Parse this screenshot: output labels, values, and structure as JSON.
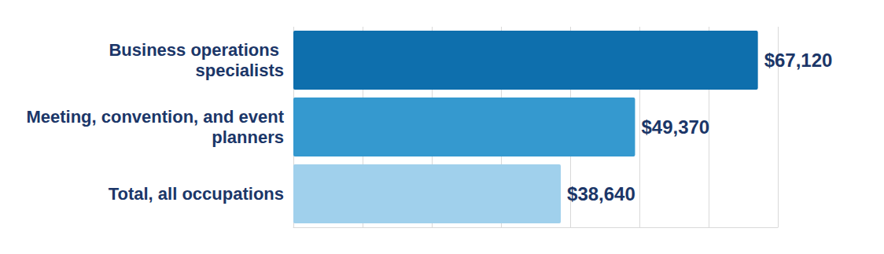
{
  "chart_data": {
    "type": "bar",
    "orientation": "horizontal",
    "categories": [
      "Business operations specialists",
      "Meeting, convention, and event planners",
      "Total, all occupations"
    ],
    "values": [
      67120,
      49370,
      38640
    ],
    "value_labels": [
      "$67,120",
      "$49,370",
      "$38,640"
    ],
    "colors": [
      "#0e6fad",
      "#3599cf",
      "#a0d0ec"
    ],
    "xlim": [
      0,
      70000
    ],
    "xticks": [
      0,
      10000,
      20000,
      30000,
      40000,
      50000,
      60000,
      70000
    ],
    "grid": true,
    "data_labels": true,
    "tick_labels": "y"
  }
}
